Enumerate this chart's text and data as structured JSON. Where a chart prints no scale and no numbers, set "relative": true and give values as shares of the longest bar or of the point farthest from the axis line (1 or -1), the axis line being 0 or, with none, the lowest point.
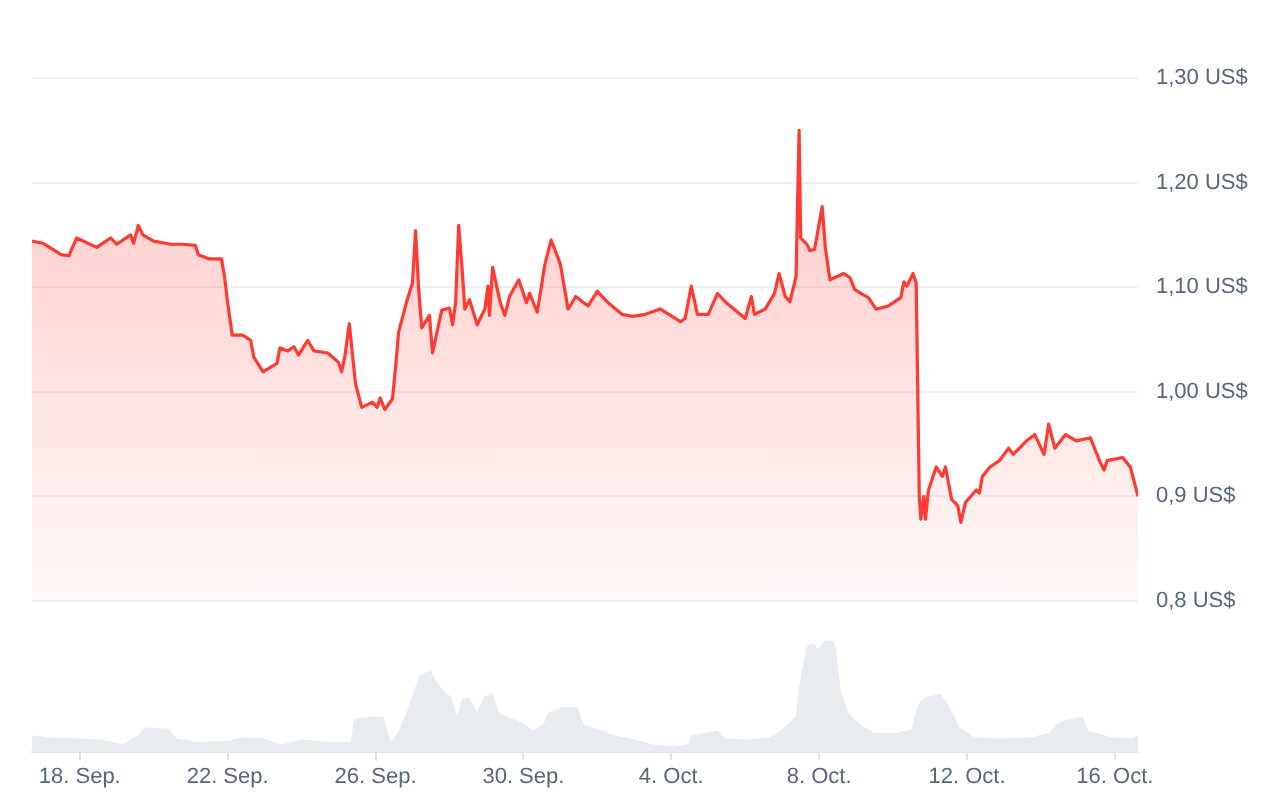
{
  "chart_data": [
    {
      "type": "area",
      "color": "#ff3a33",
      "grid": "y",
      "tick_labels": "y",
      "xlim": [
        "--09-16T17:00",
        "--10-16T15:00"
      ],
      "ylim": [
        0.8,
        1.3
      ],
      "yticks": [
        {
          "value": 0.8,
          "label": "0,8 US$"
        },
        {
          "value": 0.9,
          "label": "0,9 US$"
        },
        {
          "value": 1.0,
          "label": "1,00 US$"
        },
        {
          "value": 1.1,
          "label": "1,10 US$"
        },
        {
          "value": 1.2,
          "label": "1,20 US$"
        },
        {
          "value": 1.3,
          "label": "1,30 US$"
        }
      ],
      "x": [
        "--09-16T17:00",
        "--09-17T00:00",
        "--09-17T12:00",
        "--09-17T17:00",
        "--09-17T22:00",
        "--09-18T11:00",
        "--09-18T20:00",
        "--09-19T00:00",
        "--09-19T09:00",
        "--09-19T11:00",
        "--09-19T14:00",
        "--09-19T17:00",
        "--09-20T00:00",
        "--09-20T11:00",
        "--09-20T19:00",
        "--09-21T03:00",
        "--09-21T05:00",
        "--09-21T12:00",
        "--09-21T20:00",
        "--09-21T22:00",
        "--09-22T00:00",
        "--09-22T03:00",
        "--09-22T10:00",
        "--09-22T15:00",
        "--09-22T17:00",
        "--09-22T23:00",
        "--09-23T08:00",
        "--09-23T10:00",
        "--09-23T15:00",
        "--09-23T19:00",
        "--09-23T22:00",
        "--09-24T04:00",
        "--09-24T08:00",
        "--09-24T17:00",
        "--09-25T00:00",
        "--09-25T02:00",
        "--09-25T04:00",
        "--09-25T07:00",
        "--09-25T09:00",
        "--09-25T11:00",
        "--09-25T15:00",
        "--09-25T22:00",
        "--09-26T01:00",
        "--09-26T03:00",
        "--09-26T06:00",
        "--09-26T11:00",
        "--09-26T13:00",
        "--09-26T15:00",
        "--09-26T20:00",
        "--09-27T00:00",
        "--09-27T02:00",
        "--09-27T04:00",
        "--09-27T06:00",
        "--09-27T11:00",
        "--09-27T13:00",
        "--09-27T19:00",
        "--09-28T00:00",
        "--09-28T02:00",
        "--09-28T04:00",
        "--09-28T06:00",
        "--09-28T08:00",
        "--09-28T10:00",
        "--09-28T13:00",
        "--09-28T18:00",
        "--09-28T23:00",
        "--09-29T01:00",
        "--09-29T02:00",
        "--09-29T04:00",
        "--09-29T09:00",
        "--09-29T12:00",
        "--09-29T15:00",
        "--09-29T21:00",
        "--09-30T02:00",
        "--09-30T04:00",
        "--09-30T09:00",
        "--09-30T14:00",
        "--09-30T18:00",
        "--10-01T00:00",
        "--10-01T05:00",
        "--10-01T10:00",
        "--10-01T18:00",
        "--10-02T00:00",
        "--10-02T07:00",
        "--10-02T16:00",
        "--10-02T23:00",
        "--10-03T07:00",
        "--10-03T17:00",
        "--10-04T06:00",
        "--10-04T09:00",
        "--10-04T13:00",
        "--10-04T17:00",
        "--10-05T00:00",
        "--10-05T06:00",
        "--10-05T11:00",
        "--10-06T00:00",
        "--10-06T04:00",
        "--10-06T06:00",
        "--10-06T13:00",
        "--10-06T19:00",
        "--10-06T22:00",
        "--10-07T02:00",
        "--10-07T05:00",
        "--10-07T09:00",
        "--10-07T11:00",
        "--10-07T12:00",
        "--10-07T16:00",
        "--10-07T18:00",
        "--10-07T21:00",
        "--10-08T02:00",
        "--10-08T04:00",
        "--10-08T07:00",
        "--10-08T16:00",
        "--10-08T20:00",
        "--10-08T23:00",
        "--10-09T03:00",
        "--10-09T08:00",
        "--10-09T13:00",
        "--10-09T21:00",
        "--10-10T05:00",
        "--10-10T07:00",
        "--10-10T09:00",
        "--10-10T13:00",
        "--10-10T15:00",
        "--10-10T17:00",
        "--10-10T18:00",
        "--10-10T20:00",
        "--10-10T21:00",
        "--10-10T23:00",
        "--10-11T04:00",
        "--10-11T08:00",
        "--10-11T10:00",
        "--10-11T14:00",
        "--10-11T18:00",
        "--10-11T20:00",
        "--10-11T23:00",
        "--10-12T06:00",
        "--10-12T08:00",
        "--10-12T10:00",
        "--10-12T15:00",
        "--10-12T21:00",
        "--10-13T03:00",
        "--10-13T06:00",
        "--10-13T14:00",
        "--10-13T20:00",
        "--10-14T02:00",
        "--10-14T05:00",
        "--10-14T09:00",
        "--10-14T16:00",
        "--10-14T23:00",
        "--10-15T08:00",
        "--10-15T14:00",
        "--10-15T17:00",
        "--10-15T19:00",
        "--10-16T05:00",
        "--10-16T10:00",
        "--10-16T15:00"
      ],
      "values": [
        1.144,
        1.142,
        1.131,
        1.13,
        1.147,
        1.138,
        1.147,
        1.141,
        1.15,
        1.142,
        1.159,
        1.15,
        1.144,
        1.141,
        1.141,
        1.14,
        1.131,
        1.127,
        1.127,
        1.11,
        1.085,
        1.054,
        1.054,
        1.049,
        1.033,
        1.019,
        1.027,
        1.042,
        1.039,
        1.043,
        1.035,
        1.049,
        1.039,
        1.037,
        1.028,
        1.019,
        1.033,
        1.065,
        1.036,
        1.008,
        0.985,
        0.99,
        0.985,
        0.994,
        0.983,
        0.993,
        1.023,
        1.057,
        1.085,
        1.104,
        1.154,
        1.098,
        1.061,
        1.073,
        1.037,
        1.078,
        1.08,
        1.064,
        1.085,
        1.159,
        1.122,
        1.079,
        1.088,
        1.064,
        1.079,
        1.101,
        1.073,
        1.119,
        1.085,
        1.073,
        1.091,
        1.107,
        1.085,
        1.094,
        1.076,
        1.122,
        1.145,
        1.122,
        1.079,
        1.091,
        1.082,
        1.096,
        1.085,
        1.074,
        1.072,
        1.074,
        1.079,
        1.067,
        1.07,
        1.101,
        1.074,
        1.074,
        1.094,
        1.086,
        1.07,
        1.091,
        1.074,
        1.079,
        1.094,
        1.113,
        1.091,
        1.086,
        1.11,
        1.25,
        1.147,
        1.141,
        1.135,
        1.136,
        1.177,
        1.138,
        1.107,
        1.113,
        1.109,
        1.098,
        1.094,
        1.09,
        1.079,
        1.082,
        1.09,
        1.105,
        1.101,
        1.113,
        1.104,
        0.9,
        0.878,
        0.9,
        0.878,
        0.906,
        0.928,
        0.919,
        0.928,
        0.897,
        0.891,
        0.875,
        0.894,
        0.906,
        0.903,
        0.919,
        0.928,
        0.934,
        0.946,
        0.94,
        0.952,
        0.959,
        0.94,
        0.969,
        0.946,
        0.959,
        0.953,
        0.956,
        0.934,
        0.925,
        0.934,
        0.937,
        0.928,
        0.9
      ]
    },
    {
      "type": "area",
      "relative": true,
      "color": "#e8ebf0",
      "xlim": [
        "--09-16T17:00",
        "--10-16T15:00"
      ],
      "xticks": [
        {
          "value": "--09-18",
          "label": "18. Sep."
        },
        {
          "value": "--09-22",
          "label": "22. Sep."
        },
        {
          "value": "--09-26",
          "label": "26. Sep."
        },
        {
          "value": "--09-30",
          "label": "30. Sep."
        },
        {
          "value": "--10-04",
          "label": "4. Oct."
        },
        {
          "value": "--10-08",
          "label": "8. Oct."
        },
        {
          "value": "--10-12",
          "label": "12. Oct."
        },
        {
          "value": "--10-16",
          "label": "16. Oct."
        }
      ],
      "x": [
        "--09-16T17:00",
        "--09-17T04:00",
        "--09-18T00:00",
        "--09-18T14:00",
        "--09-19T04:00",
        "--09-19T14:00",
        "--09-19T19:00",
        "--09-20T09:00",
        "--09-20T15:00",
        "--09-21T05:00",
        "--09-22T00:00",
        "--09-22T10:00",
        "--09-23T00:00",
        "--09-23T10:00",
        "--09-24T00:00",
        "--09-24T20:00",
        "--09-25T08:00",
        "--09-25T10:00",
        "--09-25T20:00",
        "--09-26T05:00",
        "--09-26T10:00",
        "--09-26T15:00",
        "--09-26T20:00",
        "--09-27T01:00",
        "--09-27T05:00",
        "--09-27T12:00",
        "--09-27T15:00",
        "--09-27T20:00",
        "--09-28T01:00",
        "--09-28T05:00",
        "--09-28T08:00",
        "--09-28T13:00",
        "--09-28T18:00",
        "--09-28T22:00",
        "--09-29T04:00",
        "--09-29T08:00",
        "--09-29T15:00",
        "--09-30T01:00",
        "--09-30T06:00",
        "--09-30T13:00",
        "--09-30T16:00",
        "--10-01T01:00",
        "--10-01T11:00",
        "--10-01T15:00",
        "--10-02T01:00",
        "--10-02T11:00",
        "--10-03T01:00",
        "--10-03T11:00",
        "--10-04T01:00",
        "--10-04T11:00",
        "--10-04T13:00",
        "--10-05T06:00",
        "--10-05T11:00",
        "--10-06T02:00",
        "--10-06T16:00",
        "--10-06T23:00",
        "--10-07T09:00",
        "--10-07T11:00",
        "--10-07T16:00",
        "--10-07T21:00",
        "--10-07T23:00",
        "--10-08T04:00",
        "--10-08T09:00",
        "--10-08T11:00",
        "--10-08T14:00",
        "--10-08T19:00",
        "--10-09T02:00",
        "--10-09T12:00",
        "--10-10T02:00",
        "--10-10T12:00",
        "--10-10T16:00",
        "--10-10T21:00",
        "--10-11T07:00",
        "--10-11T12:00",
        "--10-11T19:00",
        "--10-12T05:00",
        "--10-12T22:00",
        "--10-13T17:00",
        "--10-14T05:00",
        "--10-14T10:00",
        "--10-14T17:00",
        "--10-15T03:00",
        "--10-15T07:00",
        "--10-15T22:00",
        "--10-16T12:00",
        "--10-16T15:00"
      ],
      "values": [
        0.15,
        0.13,
        0.12,
        0.11,
        0.07,
        0.15,
        0.22,
        0.21,
        0.12,
        0.09,
        0.1,
        0.13,
        0.12,
        0.07,
        0.11,
        0.09,
        0.09,
        0.29,
        0.32,
        0.31,
        0.09,
        0.19,
        0.35,
        0.55,
        0.69,
        0.73,
        0.64,
        0.55,
        0.49,
        0.32,
        0.47,
        0.49,
        0.35,
        0.49,
        0.53,
        0.35,
        0.31,
        0.25,
        0.19,
        0.25,
        0.35,
        0.4,
        0.4,
        0.25,
        0.2,
        0.15,
        0.11,
        0.07,
        0.05,
        0.07,
        0.15,
        0.19,
        0.12,
        0.11,
        0.13,
        0.19,
        0.32,
        0.59,
        0.95,
        0.97,
        0.92,
        1.0,
        0.99,
        0.92,
        0.55,
        0.35,
        0.25,
        0.17,
        0.17,
        0.2,
        0.42,
        0.49,
        0.52,
        0.42,
        0.22,
        0.13,
        0.12,
        0.13,
        0.17,
        0.25,
        0.29,
        0.32,
        0.19,
        0.13,
        0.12,
        0.15
      ]
    }
  ]
}
